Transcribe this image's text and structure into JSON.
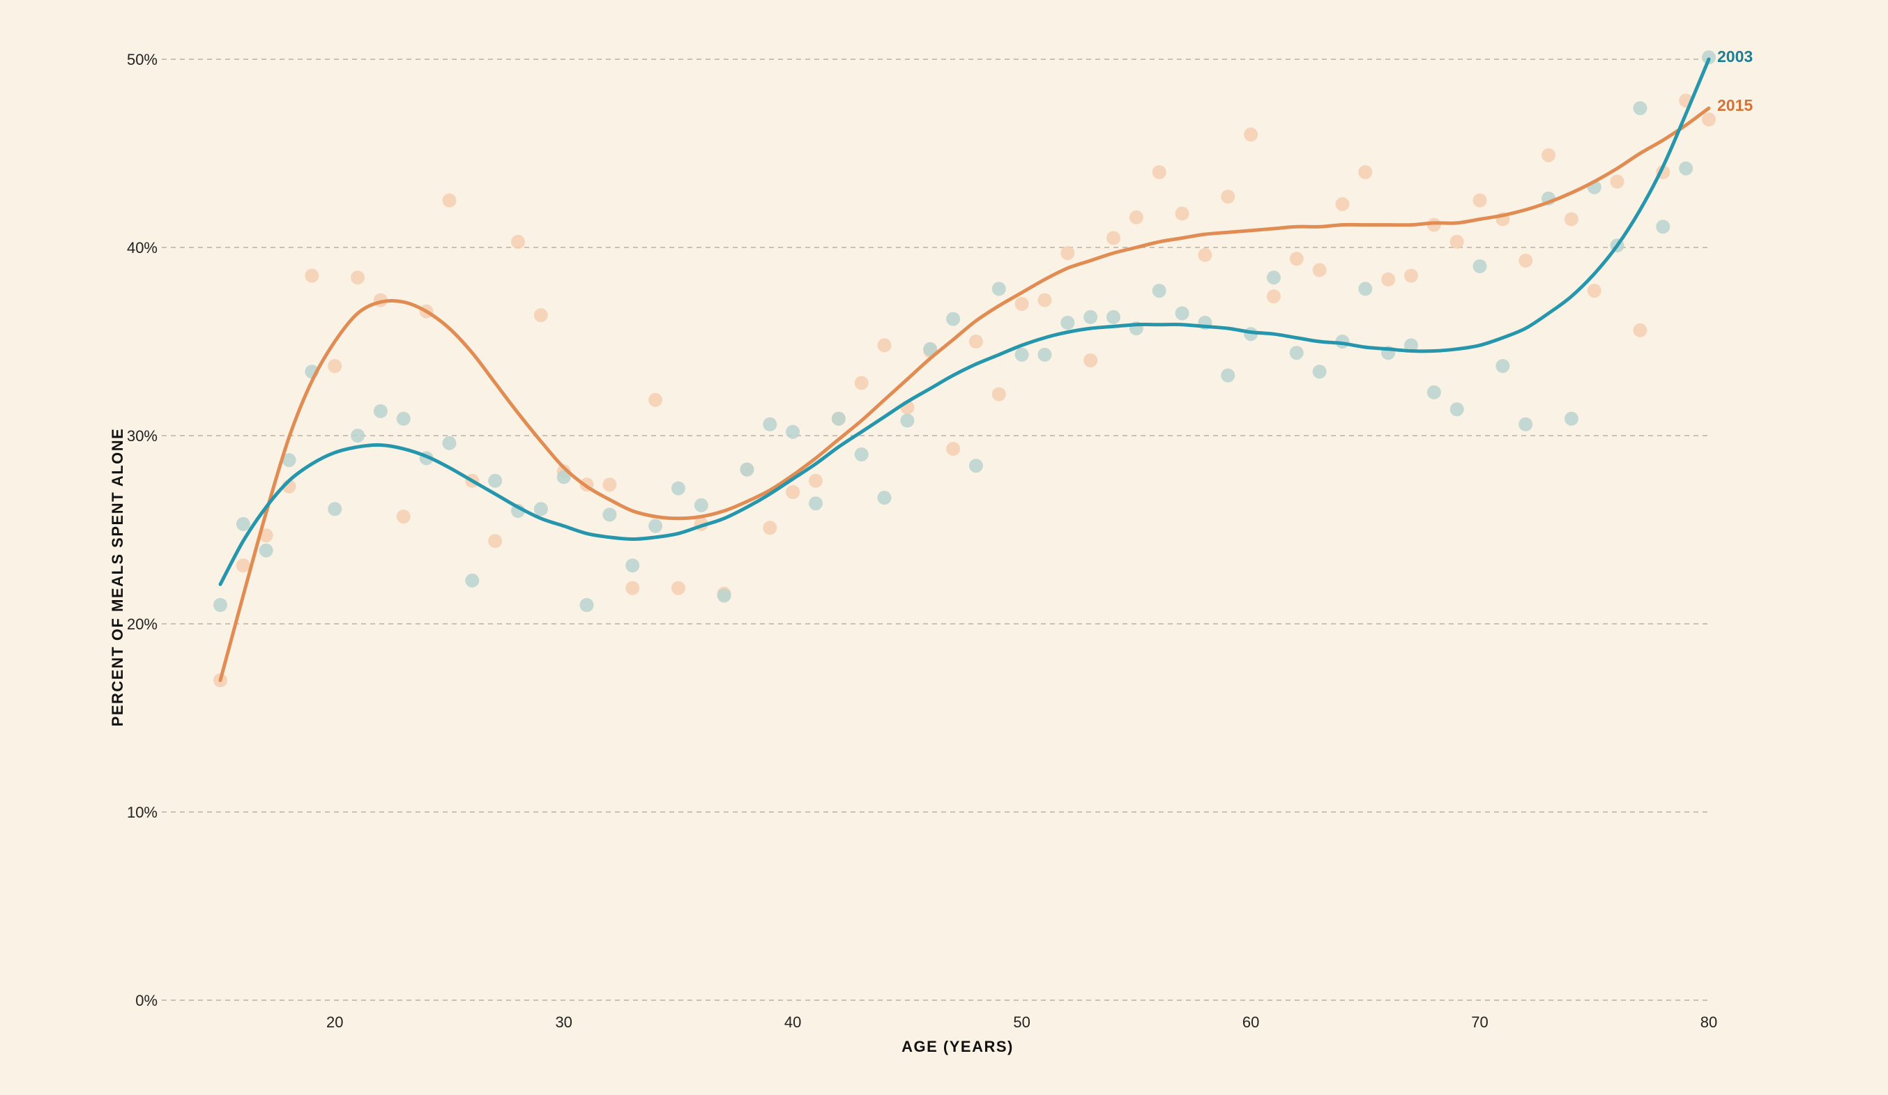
{
  "chart_data": {
    "type": "scatter",
    "title": "",
    "xlabel": "AGE (YEARS)",
    "ylabel": "PERCENT OF MEALS SPENT ALONE",
    "xlim": [
      15,
      80
    ],
    "ylim": [
      0,
      50
    ],
    "x_ticks": [
      20,
      30,
      40,
      50,
      60,
      70,
      80
    ],
    "y_ticks": [
      0,
      10,
      20,
      30,
      40,
      50
    ],
    "y_tick_labels": [
      "0%",
      "10%",
      "20%",
      "30%",
      "40%",
      "50%"
    ],
    "grid": "horizontal dashed",
    "legend": "direct labels at right end of lines",
    "series": [
      {
        "name": "2003",
        "color": "#2596ab",
        "label_color": "#1d7f92",
        "dot_color": "#b9d3cf",
        "points": [
          [
            15,
            21.0
          ],
          [
            16,
            25.3
          ],
          [
            17,
            23.9
          ],
          [
            18,
            28.7
          ],
          [
            19,
            33.4
          ],
          [
            20,
            26.1
          ],
          [
            21,
            30.0
          ],
          [
            22,
            31.3
          ],
          [
            23,
            30.9
          ],
          [
            24,
            28.8
          ],
          [
            25,
            29.6
          ],
          [
            26,
            22.3
          ],
          [
            27,
            27.6
          ],
          [
            28,
            26.0
          ],
          [
            29,
            26.1
          ],
          [
            30,
            27.8
          ],
          [
            31,
            21.0
          ],
          [
            32,
            25.8
          ],
          [
            33,
            23.1
          ],
          [
            34,
            25.2
          ],
          [
            35,
            27.2
          ],
          [
            36,
            26.3
          ],
          [
            37,
            21.5
          ],
          [
            38,
            28.2
          ],
          [
            39,
            30.6
          ],
          [
            40,
            30.2
          ],
          [
            41,
            26.4
          ],
          [
            42,
            30.9
          ],
          [
            43,
            29.0
          ],
          [
            44,
            26.7
          ],
          [
            45,
            30.8
          ],
          [
            46,
            34.6
          ],
          [
            47,
            36.2
          ],
          [
            48,
            28.4
          ],
          [
            49,
            37.8
          ],
          [
            50,
            34.3
          ],
          [
            51,
            34.3
          ],
          [
            52,
            36.0
          ],
          [
            53,
            36.3
          ],
          [
            54,
            36.3
          ],
          [
            55,
            35.7
          ],
          [
            56,
            37.7
          ],
          [
            57,
            36.5
          ],
          [
            58,
            36.0
          ],
          [
            59,
            33.2
          ],
          [
            60,
            35.4
          ],
          [
            61,
            38.4
          ],
          [
            62,
            34.4
          ],
          [
            63,
            33.4
          ],
          [
            64,
            35.0
          ],
          [
            65,
            37.8
          ],
          [
            66,
            34.4
          ],
          [
            67,
            34.8
          ],
          [
            68,
            32.3
          ],
          [
            69,
            31.4
          ],
          [
            70,
            39.0
          ],
          [
            71,
            33.7
          ],
          [
            72,
            30.6
          ],
          [
            73,
            42.6
          ],
          [
            74,
            30.9
          ],
          [
            75,
            43.2
          ],
          [
            76,
            40.1
          ],
          [
            77,
            47.4
          ],
          [
            78,
            41.1
          ],
          [
            79,
            44.2
          ],
          [
            80,
            50.1
          ]
        ],
        "trend": [
          [
            15,
            22.1
          ],
          [
            16,
            24.4
          ],
          [
            17,
            26.2
          ],
          [
            18,
            27.6
          ],
          [
            19,
            28.5
          ],
          [
            20,
            29.1
          ],
          [
            21,
            29.4
          ],
          [
            22,
            29.5
          ],
          [
            23,
            29.3
          ],
          [
            24,
            28.9
          ],
          [
            25,
            28.3
          ],
          [
            26,
            27.6
          ],
          [
            27,
            26.9
          ],
          [
            28,
            26.2
          ],
          [
            29,
            25.6
          ],
          [
            30,
            25.2
          ],
          [
            31,
            24.8
          ],
          [
            32,
            24.6
          ],
          [
            33,
            24.5
          ],
          [
            34,
            24.6
          ],
          [
            35,
            24.8
          ],
          [
            36,
            25.2
          ],
          [
            37,
            25.6
          ],
          [
            38,
            26.2
          ],
          [
            39,
            26.9
          ],
          [
            40,
            27.7
          ],
          [
            41,
            28.5
          ],
          [
            42,
            29.4
          ],
          [
            43,
            30.2
          ],
          [
            44,
            31.0
          ],
          [
            45,
            31.8
          ],
          [
            46,
            32.5
          ],
          [
            47,
            33.2
          ],
          [
            48,
            33.8
          ],
          [
            49,
            34.3
          ],
          [
            50,
            34.8
          ],
          [
            51,
            35.2
          ],
          [
            52,
            35.5
          ],
          [
            53,
            35.7
          ],
          [
            54,
            35.8
          ],
          [
            55,
            35.9
          ],
          [
            56,
            35.9
          ],
          [
            57,
            35.9
          ],
          [
            58,
            35.8
          ],
          [
            59,
            35.7
          ],
          [
            60,
            35.5
          ],
          [
            61,
            35.4
          ],
          [
            62,
            35.2
          ],
          [
            63,
            35.0
          ],
          [
            64,
            34.9
          ],
          [
            65,
            34.7
          ],
          [
            66,
            34.6
          ],
          [
            67,
            34.5
          ],
          [
            68,
            34.5
          ],
          [
            69,
            34.6
          ],
          [
            70,
            34.8
          ],
          [
            71,
            35.2
          ],
          [
            72,
            35.7
          ],
          [
            73,
            36.5
          ],
          [
            74,
            37.4
          ],
          [
            75,
            38.6
          ],
          [
            76,
            40.1
          ],
          [
            77,
            42.0
          ],
          [
            78,
            44.3
          ],
          [
            79,
            47.1
          ],
          [
            80,
            50.0
          ]
        ]
      },
      {
        "name": "2015",
        "color": "#e08c52",
        "label_color": "#d47337",
        "dot_color": "#f5cfb2",
        "points": [
          [
            15,
            17.0
          ],
          [
            16,
            23.1
          ],
          [
            17,
            24.7
          ],
          [
            18,
            27.3
          ],
          [
            19,
            38.5
          ],
          [
            20,
            33.7
          ],
          [
            21,
            38.4
          ],
          [
            22,
            37.2
          ],
          [
            23,
            25.7
          ],
          [
            24,
            36.6
          ],
          [
            25,
            42.5
          ],
          [
            26,
            27.6
          ],
          [
            27,
            24.4
          ],
          [
            28,
            40.3
          ],
          [
            29,
            36.4
          ],
          [
            30,
            28.1
          ],
          [
            31,
            27.4
          ],
          [
            32,
            27.4
          ],
          [
            33,
            21.9
          ],
          [
            34,
            31.9
          ],
          [
            35,
            21.9
          ],
          [
            36,
            25.3
          ],
          [
            37,
            21.6
          ],
          [
            38,
            28.2
          ],
          [
            39,
            25.1
          ],
          [
            40,
            27.0
          ],
          [
            41,
            27.6
          ],
          [
            42,
            30.9
          ],
          [
            43,
            32.8
          ],
          [
            44,
            34.8
          ],
          [
            45,
            31.5
          ],
          [
            46,
            34.5
          ],
          [
            47,
            29.3
          ],
          [
            48,
            35.0
          ],
          [
            49,
            32.2
          ],
          [
            50,
            37.0
          ],
          [
            51,
            37.2
          ],
          [
            52,
            39.7
          ],
          [
            53,
            34.0
          ],
          [
            54,
            40.5
          ],
          [
            55,
            41.6
          ],
          [
            56,
            44.0
          ],
          [
            57,
            41.8
          ],
          [
            58,
            39.6
          ],
          [
            59,
            42.7
          ],
          [
            60,
            46.0
          ],
          [
            61,
            37.4
          ],
          [
            62,
            39.4
          ],
          [
            63,
            38.8
          ],
          [
            64,
            42.3
          ],
          [
            65,
            44.0
          ],
          [
            66,
            38.3
          ],
          [
            67,
            38.5
          ],
          [
            68,
            41.2
          ],
          [
            69,
            40.3
          ],
          [
            70,
            42.5
          ],
          [
            71,
            41.5
          ],
          [
            72,
            39.3
          ],
          [
            73,
            44.9
          ],
          [
            74,
            41.5
          ],
          [
            75,
            37.7
          ],
          [
            76,
            43.5
          ],
          [
            77,
            35.6
          ],
          [
            78,
            44.0
          ],
          [
            79,
            47.8
          ],
          [
            80,
            46.8
          ]
        ],
        "trend": [
          [
            15,
            17.0
          ],
          [
            16,
            21.5
          ],
          [
            17,
            25.9
          ],
          [
            18,
            29.9
          ],
          [
            19,
            32.9
          ],
          [
            20,
            35.0
          ],
          [
            21,
            36.5
          ],
          [
            22,
            37.1
          ],
          [
            23,
            37.1
          ],
          [
            24,
            36.6
          ],
          [
            25,
            35.7
          ],
          [
            26,
            34.4
          ],
          [
            27,
            32.8
          ],
          [
            28,
            31.2
          ],
          [
            29,
            29.7
          ],
          [
            30,
            28.3
          ],
          [
            31,
            27.3
          ],
          [
            32,
            26.6
          ],
          [
            33,
            26.0
          ],
          [
            34,
            25.7
          ],
          [
            35,
            25.6
          ],
          [
            36,
            25.7
          ],
          [
            37,
            26.0
          ],
          [
            38,
            26.5
          ],
          [
            39,
            27.1
          ],
          [
            40,
            27.9
          ],
          [
            41,
            28.8
          ],
          [
            42,
            29.8
          ],
          [
            43,
            30.8
          ],
          [
            44,
            31.9
          ],
          [
            45,
            33.0
          ],
          [
            46,
            34.1
          ],
          [
            47,
            35.1
          ],
          [
            48,
            36.1
          ],
          [
            49,
            36.9
          ],
          [
            50,
            37.6
          ],
          [
            51,
            38.3
          ],
          [
            52,
            38.9
          ],
          [
            53,
            39.3
          ],
          [
            54,
            39.7
          ],
          [
            55,
            40.0
          ],
          [
            56,
            40.3
          ],
          [
            57,
            40.5
          ],
          [
            58,
            40.7
          ],
          [
            59,
            40.8
          ],
          [
            60,
            40.9
          ],
          [
            61,
            41.0
          ],
          [
            62,
            41.1
          ],
          [
            63,
            41.1
          ],
          [
            64,
            41.2
          ],
          [
            65,
            41.2
          ],
          [
            66,
            41.2
          ],
          [
            67,
            41.2
          ],
          [
            68,
            41.3
          ],
          [
            69,
            41.3
          ],
          [
            70,
            41.5
          ],
          [
            71,
            41.7
          ],
          [
            72,
            42.0
          ],
          [
            73,
            42.4
          ],
          [
            74,
            42.9
          ],
          [
            75,
            43.5
          ],
          [
            76,
            44.2
          ],
          [
            77,
            45.0
          ],
          [
            78,
            45.7
          ],
          [
            79,
            46.5
          ],
          [
            80,
            47.4
          ]
        ]
      }
    ]
  }
}
